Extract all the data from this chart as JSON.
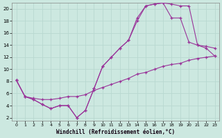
{
  "xlabel": "Windchill (Refroidissement éolien,°C)",
  "background_color": "#cce8e0",
  "grid_color": "#b8d8d0",
  "line_color": "#993399",
  "xlim_min": -0.5,
  "xlim_max": 23.5,
  "ylim_min": 1.5,
  "ylim_max": 21.0,
  "xticks": [
    0,
    1,
    2,
    3,
    4,
    5,
    6,
    7,
    8,
    9,
    10,
    11,
    12,
    13,
    14,
    15,
    16,
    17,
    18,
    19,
    20,
    21,
    22,
    23
  ],
  "yticks": [
    2,
    4,
    6,
    8,
    10,
    12,
    14,
    16,
    18,
    20
  ],
  "line1_x": [
    0,
    1,
    2,
    3,
    4,
    5,
    6,
    7,
    8,
    9,
    10,
    11,
    12,
    13,
    14,
    15,
    16,
    17,
    18,
    19,
    20,
    21,
    22,
    23
  ],
  "line1_y": [
    8.2,
    5.5,
    5.0,
    4.2,
    3.5,
    4.0,
    4.0,
    2.0,
    3.2,
    6.8,
    10.5,
    12.0,
    13.5,
    14.8,
    18.0,
    20.5,
    20.8,
    21.0,
    20.8,
    20.5,
    20.5,
    14.0,
    13.8,
    13.5
  ],
  "line2_x": [
    0,
    1,
    2,
    3,
    4,
    5,
    6,
    7,
    8,
    9,
    10,
    11,
    12,
    13,
    14,
    15,
    16,
    17,
    18,
    19,
    20,
    21,
    22,
    23
  ],
  "line2_y": [
    8.2,
    5.5,
    5.0,
    4.2,
    3.5,
    4.0,
    4.0,
    2.0,
    3.2,
    6.8,
    10.5,
    12.0,
    13.5,
    14.8,
    18.5,
    20.5,
    20.8,
    21.0,
    18.5,
    18.5,
    14.5,
    14.0,
    13.5,
    12.2
  ],
  "line3_x": [
    0,
    1,
    2,
    3,
    4,
    5,
    6,
    7,
    8,
    9,
    10,
    11,
    12,
    13,
    14,
    15,
    16,
    17,
    18,
    19,
    20,
    21,
    22,
    23
  ],
  "line3_y": [
    8.2,
    5.5,
    5.2,
    5.0,
    5.0,
    5.2,
    5.5,
    5.5,
    5.8,
    6.5,
    7.0,
    7.5,
    8.0,
    8.5,
    9.2,
    9.5,
    10.0,
    10.5,
    10.8,
    11.0,
    11.5,
    11.8,
    12.0,
    12.2
  ]
}
